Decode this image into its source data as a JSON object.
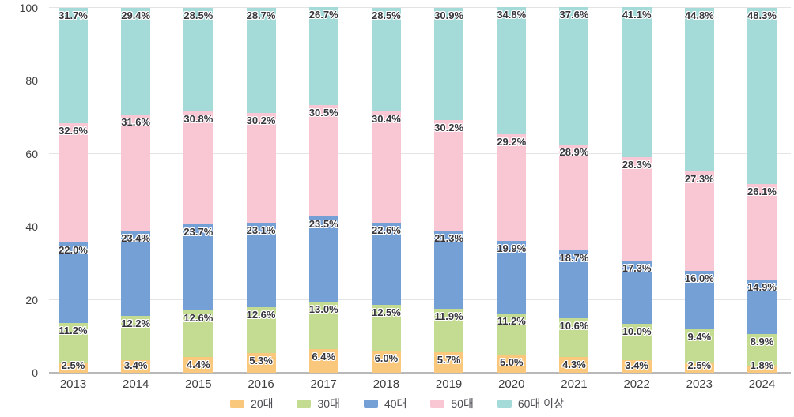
{
  "chart_data": {
    "type": "bar",
    "variant": "stacked-100-percent",
    "title": "",
    "xlabel": "",
    "ylabel": "",
    "ylim": [
      0,
      100
    ],
    "y_ticks": [
      0,
      20,
      40,
      60,
      80,
      100
    ],
    "grid": true,
    "legend_position": "bottom",
    "value_suffix": "%",
    "background_color": "#ffffff",
    "categories": [
      "2013",
      "2014",
      "2015",
      "2016",
      "2017",
      "2018",
      "2019",
      "2020",
      "2021",
      "2022",
      "2023",
      "2024"
    ],
    "series": [
      {
        "key": "20s",
        "name": "20대",
        "color": "#f9c87d",
        "values": [
          2.5,
          3.4,
          4.4,
          5.3,
          6.4,
          6.0,
          5.7,
          5.0,
          4.3,
          3.4,
          2.5,
          1.8
        ]
      },
      {
        "key": "30s",
        "name": "30대",
        "color": "#c3dc92",
        "values": [
          11.2,
          12.2,
          12.6,
          12.6,
          13.0,
          12.5,
          11.9,
          11.2,
          10.6,
          10.0,
          9.4,
          8.9
        ]
      },
      {
        "key": "40s",
        "name": "40대",
        "color": "#75a0d6",
        "values": [
          22.0,
          23.4,
          23.7,
          23.1,
          23.5,
          22.6,
          21.3,
          19.9,
          18.7,
          17.3,
          16.0,
          14.9
        ]
      },
      {
        "key": "50s",
        "name": "50대",
        "color": "#f9c6d3",
        "values": [
          32.6,
          31.6,
          30.8,
          30.2,
          30.5,
          30.4,
          30.2,
          29.2,
          28.9,
          28.3,
          27.3,
          26.1
        ]
      },
      {
        "key": "60s-plus",
        "name": "60대 이상",
        "color": "#a4dbd9",
        "values": [
          31.7,
          29.4,
          28.5,
          28.7,
          26.7,
          28.5,
          30.9,
          34.8,
          37.6,
          41.1,
          44.8,
          48.3
        ]
      }
    ]
  }
}
